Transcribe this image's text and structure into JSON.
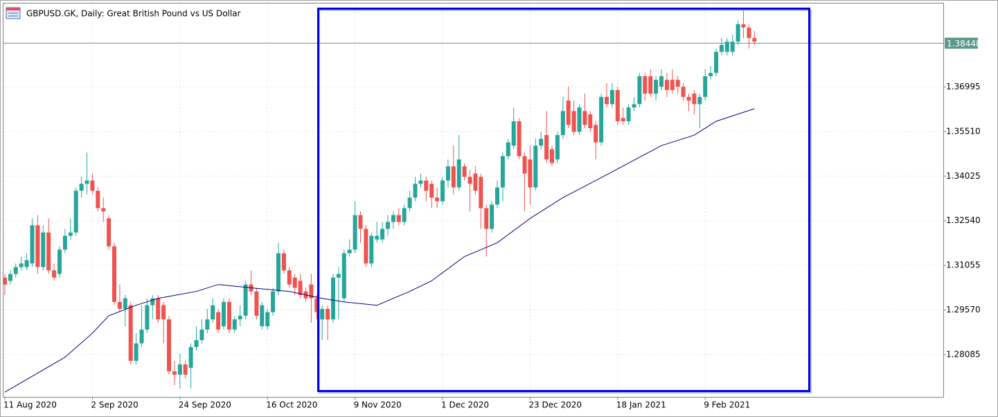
{
  "chart_data": {
    "type": "candlestick",
    "title": "GBPUSD.GK, Daily:  Great British Pound vs US Dollar",
    "up_color": "#26a69a",
    "down_color": "#ef5350",
    "open": [
      1.3065,
      1.3054,
      1.3077,
      1.31,
      1.31,
      1.3112,
      1.3239,
      1.31,
      1.3215,
      1.3089,
      1.3077,
      1.3158,
      1.3204,
      1.3215,
      1.3354,
      1.3377,
      1.3388,
      1.3354,
      1.3296,
      1.3262,
      1.3169,
      1.2984,
      1.2961,
      1.2973,
      1.2788,
      1.2846,
      1.2892,
      1.2973,
      1.2996,
      1.2973,
      1.2926,
      1.2753,
      1.2742,
      1.2776,
      1.2765,
      1.2834,
      1.2857,
      1.2892,
      1.2926,
      1.295,
      1.2903,
      1.2984,
      1.2892,
      1.2926,
      1.2938,
      1.3042,
      1.3019,
      1.2903,
      1.2903,
      1.295,
      1.3019,
      1.3146,
      1.3089,
      1.3065,
      1.3054,
      1.3019,
      1.3042,
      1.2996,
      1.2926,
      1.2961,
      1.2926,
      1.3065,
      1.2996,
      1.3146,
      1.3158,
      1.3273,
      1.3227,
      1.3112,
      1.3192,
      1.3192,
      1.3227,
      1.325,
      1.3273,
      1.325,
      1.3296,
      1.3331,
      1.3377,
      1.3388,
      1.3377,
      1.3331,
      1.3319,
      1.3388,
      1.3435,
      1.3365,
      1.3435,
      1.34,
      1.3411,
      1.34,
      1.3296,
      1.3227,
      1.3308,
      1.3365,
      1.3469,
      1.3504,
      1.3585,
      1.3469,
      1.3458,
      1.3365,
      1.3504,
      1.3539,
      1.3492,
      1.3458,
      1.3539,
      1.3654,
      1.3619,
      1.355,
      1.3619,
      1.3608,
      1.3573,
      1.3515,
      1.3666,
      1.3642,
      1.3689,
      1.3596,
      1.3585,
      1.3631,
      1.3642,
      1.3735,
      1.3735,
      1.3677,
      1.37,
      1.3723,
      1.3723,
      1.3723,
      1.37,
      1.3666,
      1.3677,
      1.3642,
      1.3666,
      1.3735,
      1.3746,
      1.3816,
      1.3816,
      1.3816,
      1.385,
      1.3908,
      1.3897,
      1.3862
    ],
    "high": [
      1.3077,
      1.3089,
      1.3112,
      1.3135,
      1.3146,
      1.3262,
      1.3273,
      1.3239,
      1.3262,
      1.3112,
      1.3169,
      1.3227,
      1.3262,
      1.3365,
      1.34,
      1.3481,
      1.3411,
      1.3365,
      1.3331,
      1.3273,
      1.3181,
      1.3042,
      1.3007,
      1.2984,
      1.288,
      1.2973,
      1.2996,
      1.3007,
      1.3007,
      1.2984,
      1.2938,
      1.2788,
      1.2811,
      1.2788,
      1.2846,
      1.2903,
      1.2926,
      1.2961,
      1.2996,
      1.2961,
      1.2996,
      1.2996,
      1.2938,
      1.2973,
      1.3054,
      1.3089,
      1.3031,
      1.2984,
      1.2961,
      1.3031,
      1.3181,
      1.3158,
      1.31,
      1.3077,
      1.3077,
      1.3031,
      1.3077,
      1.3007,
      1.2973,
      1.2973,
      1.3077,
      1.31,
      1.3158,
      1.3192,
      1.3319,
      1.3285,
      1.3239,
      1.3215,
      1.325,
      1.325,
      1.3273,
      1.3285,
      1.3296,
      1.3308,
      1.3354,
      1.34,
      1.3411,
      1.34,
      1.3388,
      1.3365,
      1.34,
      1.3458,
      1.3504,
      1.3539,
      1.3446,
      1.3423,
      1.3435,
      1.3411,
      1.3308,
      1.3319,
      1.3388,
      1.3481,
      1.3527,
      1.3631,
      1.3596,
      1.3481,
      1.3504,
      1.3527,
      1.355,
      1.3619,
      1.3504,
      1.355,
      1.3666,
      1.37,
      1.3654,
      1.3642,
      1.3677,
      1.3619,
      1.3585,
      1.3677,
      1.3712,
      1.3712,
      1.37,
      1.3631,
      1.3642,
      1.3666,
      1.3746,
      1.3746,
      1.3758,
      1.3735,
      1.3758,
      1.3746,
      1.3758,
      1.3735,
      1.3712,
      1.3677,
      1.3689,
      1.3677,
      1.3758,
      1.3769,
      1.3827,
      1.3862,
      1.3862,
      1.3873,
      1.392,
      1.3954,
      1.3908,
      1.3885
    ],
    "low": [
      1.3007,
      1.3042,
      1.3065,
      1.3089,
      1.3089,
      1.31,
      1.3077,
      1.3089,
      1.3077,
      1.3054,
      1.3065,
      1.3146,
      1.3192,
      1.3204,
      1.3331,
      1.3342,
      1.3342,
      1.3285,
      1.325,
      1.3158,
      1.2973,
      1.295,
      1.2903,
      1.2776,
      1.2776,
      1.2834,
      1.288,
      1.2926,
      1.2915,
      1.2846,
      1.2742,
      1.2707,
      1.2696,
      1.273,
      1.2696,
      1.2823,
      1.2846,
      1.288,
      1.2915,
      1.288,
      1.2892,
      1.288,
      1.288,
      1.2903,
      1.2926,
      1.3007,
      1.2926,
      1.2892,
      1.2892,
      1.2938,
      1.3007,
      1.3077,
      1.3031,
      1.3007,
      1.2996,
      1.2984,
      1.2915,
      1.2926,
      1.2857,
      1.2857,
      1.2915,
      1.2926,
      1.2984,
      1.3135,
      1.3146,
      1.3181,
      1.31,
      1.31,
      1.3181,
      1.3181,
      1.3204,
      1.3227,
      1.3239,
      1.3239,
      1.3285,
      1.3319,
      1.3365,
      1.3319,
      1.3296,
      1.3296,
      1.3308,
      1.3365,
      1.3342,
      1.3354,
      1.3388,
      1.3285,
      1.3342,
      1.3227,
      1.3135,
      1.3215,
      1.3296,
      1.3319,
      1.3458,
      1.3492,
      1.3458,
      1.3285,
      1.3308,
      1.3354,
      1.3492,
      1.3446,
      1.3435,
      1.3446,
      1.3527,
      1.3562,
      1.3539,
      1.3539,
      1.3562,
      1.355,
      1.3458,
      1.3504,
      1.3631,
      1.3631,
      1.3573,
      1.3573,
      1.3573,
      1.3619,
      1.3631,
      1.3654,
      1.3666,
      1.3654,
      1.3689,
      1.3666,
      1.3677,
      1.3677,
      1.3654,
      1.3619,
      1.3608,
      1.3562,
      1.3654,
      1.3723,
      1.3735,
      1.3804,
      1.3804,
      1.3804,
      1.3839,
      1.3862,
      1.3827,
      1.3839
    ],
    "close": [
      1.3042,
      1.3077,
      1.31,
      1.3112,
      1.3123,
      1.3239,
      1.31,
      1.3215,
      1.3089,
      1.3065,
      1.3158,
      1.3204,
      1.3215,
      1.3354,
      1.3377,
      1.3388,
      1.3354,
      1.3296,
      1.3285,
      1.3169,
      1.2984,
      1.2961,
      1.2996,
      1.2788,
      1.2846,
      1.2892,
      1.2973,
      1.2996,
      1.2926,
      1.2926,
      1.2753,
      1.2742,
      1.2776,
      1.2742,
      1.2834,
      1.2857,
      1.2892,
      1.2926,
      1.2973,
      1.2892,
      1.2984,
      1.2892,
      1.2926,
      1.2938,
      1.3042,
      1.3019,
      1.2938,
      1.2973,
      1.295,
      1.3019,
      1.3146,
      1.3089,
      1.3042,
      1.3031,
      1.3007,
      1.2996,
      1.2996,
      1.295,
      1.2961,
      1.2926,
      1.3065,
      1.3077,
      1.3146,
      1.3158,
      1.3273,
      1.3227,
      1.3112,
      1.3204,
      1.3204,
      1.3227,
      1.325,
      1.3273,
      1.325,
      1.3296,
      1.3331,
      1.3377,
      1.3388,
      1.3354,
      1.3331,
      1.3319,
      1.3388,
      1.3435,
      1.3365,
      1.3458,
      1.34,
      1.3377,
      1.3354,
      1.3296,
      1.3227,
      1.3308,
      1.3365,
      1.3469,
      1.3515,
      1.3585,
      1.3469,
      1.3411,
      1.3365,
      1.3504,
      1.3527,
      1.3458,
      1.3446,
      1.3539,
      1.3619,
      1.3573,
      1.355,
      1.3631,
      1.3573,
      1.3562,
      1.3515,
      1.3666,
      1.3642,
      1.3689,
      1.3585,
      1.3585,
      1.3631,
      1.3642,
      1.3735,
      1.3677,
      1.3677,
      1.3723,
      1.3735,
      1.3689,
      1.3689,
      1.37,
      1.3666,
      1.3654,
      1.3642,
      1.3666,
      1.3735,
      1.3746,
      1.3816,
      1.3839,
      1.385,
      1.385,
      1.3908,
      1.3897,
      1.3862,
      1.385
    ],
    "ma": {
      "color": "#000080",
      "x": [
        0,
        11,
        16,
        19,
        24,
        28,
        35,
        39,
        45,
        52,
        58,
        62,
        68,
        74,
        78,
        84,
        90,
        96,
        102,
        108,
        114,
        120,
        126,
        130,
        137
      ],
      "values": [
        1.2684,
        1.28,
        1.288,
        1.2938,
        1.2973,
        1.2996,
        1.3019,
        1.3042,
        1.3031,
        1.3019,
        1.2996,
        1.2984,
        1.2973,
        1.3019,
        1.3054,
        1.3135,
        1.3181,
        1.3262,
        1.3331,
        1.3388,
        1.3446,
        1.3504,
        1.3539,
        1.3585,
        1.3627
      ]
    },
    "current_price": {
      "value": 1.38448,
      "color": "#5b9a8b"
    },
    "ylim": [
      1.2668,
      1.3977
    ],
    "yticks": [
      1.36995,
      {
        "value": 1.3551,
        "label": "1.35510"
      },
      1.34025,
      {
        "value": 1.3254,
        "label": "1.32540"
      },
      1.31055,
      {
        "value": 1.2957,
        "label": "1.29570"
      },
      1.28085
    ],
    "xticks": [
      {
        "value": 0,
        "label": "11 Aug 2020"
      },
      {
        "value": 16,
        "label": "2 Sep 2020"
      },
      {
        "value": 32,
        "label": "24 Sep 2020"
      },
      {
        "value": 48,
        "label": "16 Oct 2020"
      },
      {
        "value": 64,
        "label": "9 Nov 2020"
      },
      {
        "value": 80,
        "label": "1 Dec 2020"
      },
      {
        "value": 96,
        "label": "23 Dec 2020"
      },
      {
        "value": 112,
        "label": "18 Jan 2021"
      },
      {
        "value": 128,
        "label": "9 Feb 2021"
      }
    ],
    "grid": true
  }
}
